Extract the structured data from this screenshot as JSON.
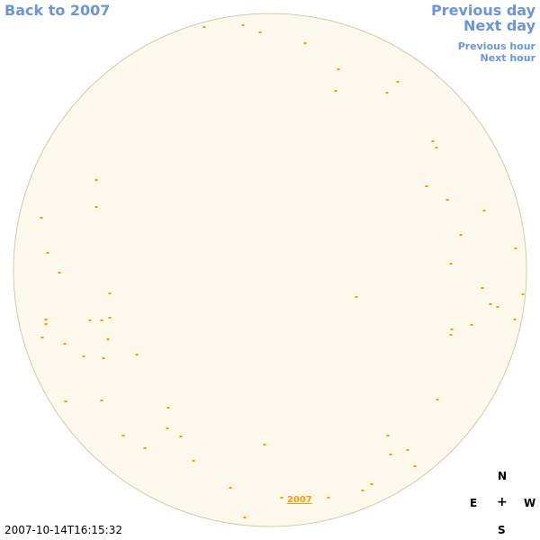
{
  "nav": {
    "back": "Back to 2007",
    "previous_day": "Previous day",
    "next_day": "Next day",
    "previous_hour": "Previous hour",
    "next_hour": "Next hour"
  },
  "timestamp": "2007-10-14T16:15:32",
  "compass": {
    "north": "N",
    "east": "E",
    "center": "+",
    "west": "W",
    "south": "S"
  },
  "year_link": "2007",
  "colors": {
    "disk_fill": "#fdf8ec",
    "disk_stroke": "#d4c9ad",
    "marker": "#ff9900",
    "nav": "#6b95d9"
  }
}
